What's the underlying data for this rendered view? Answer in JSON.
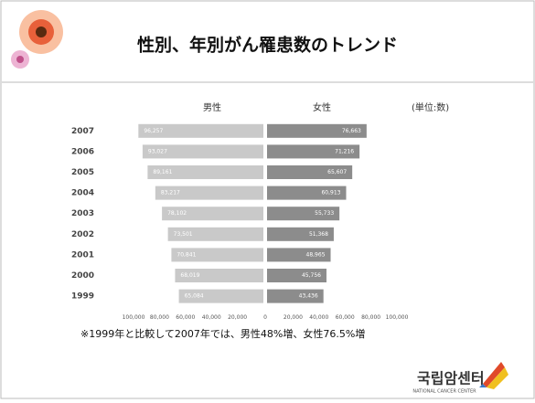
{
  "chart_data": {
    "type": "butterfly",
    "title": "性別、年別がん罹患数のトレンド",
    "unit_label": "(単位:数)",
    "note": "※1999年と比較して2007年では、男性48%増、女性76.5%増",
    "logo": "국립암센터",
    "logo_subtitle": "NATIONAL CANCER CENTER",
    "categories": [
      "2007",
      "2006",
      "2005",
      "2004",
      "2003",
      "2002",
      "2001",
      "2000",
      "1999"
    ],
    "series": [
      {
        "name": "男性",
        "color": "#c9c9c9",
        "side": "left",
        "values": [
          96257,
          93027,
          89161,
          83217,
          78102,
          73501,
          70841,
          68019,
          65084
        ],
        "value_labels": [
          "96,257",
          "93,027",
          "89,161",
          "83,217",
          "78,102",
          "73,501",
          "70,841",
          "68,019",
          "65,084"
        ]
      },
      {
        "name": "女性",
        "color": "#8c8c8c",
        "side": "right",
        "values": [
          76663,
          71216,
          65607,
          60913,
          55733,
          51368,
          48965,
          45756,
          43436
        ],
        "value_labels": [
          "76,663",
          "71,216",
          "65,607",
          "60,913",
          "55,733",
          "51,368",
          "48,965",
          "45,756",
          "43,436"
        ]
      }
    ],
    "xlim": [
      0,
      100000
    ],
    "xticks": [
      0,
      {
        "value": 20000,
        "label": "20,000"
      },
      {
        "value": 40000,
        "label": "40,000"
      },
      {
        "value": 60000,
        "label": "60,000"
      },
      {
        "value": 80000,
        "label": "80,000"
      },
      {
        "value": 100000,
        "label": "100,000"
      }
    ]
  }
}
